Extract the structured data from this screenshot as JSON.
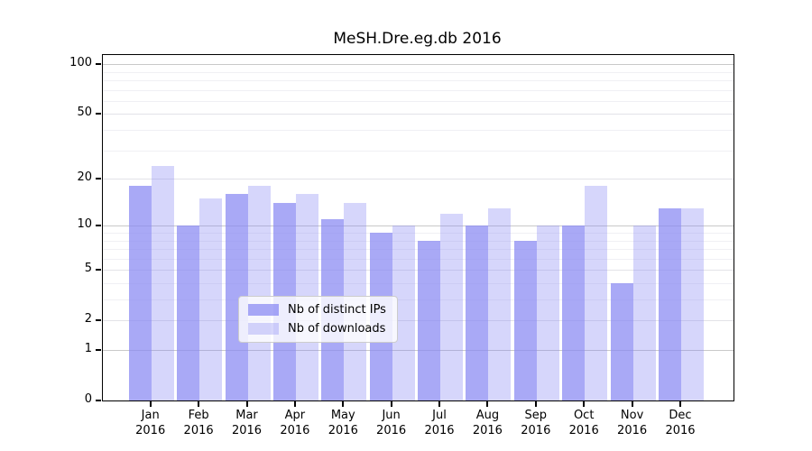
{
  "chart_data": {
    "type": "bar",
    "title": "MeSH.Dre.eg.db 2016",
    "categories": [
      "Jan",
      "Feb",
      "Mar",
      "Apr",
      "May",
      "Jun",
      "Jul",
      "Aug",
      "Sep",
      "Oct",
      "Nov",
      "Dec"
    ],
    "year_label": "2016",
    "series": [
      {
        "name": "Nb of distinct IPs",
        "color": "rgba(136,136,242,0.72)",
        "values": [
          18,
          10,
          16,
          14,
          11,
          9,
          8,
          10,
          8,
          10,
          4,
          13
        ]
      },
      {
        "name": "Nb of downloads",
        "color": "rgba(136,136,242,0.34)",
        "values": [
          24,
          15,
          18,
          16,
          14,
          10,
          12,
          13,
          10,
          18,
          10,
          13
        ]
      }
    ],
    "xlabel": "",
    "ylabel": "",
    "y_axis": {
      "scale": "log10(1+x)",
      "ticks": [
        0,
        1,
        2,
        5,
        10,
        20,
        50,
        100
      ],
      "ylim": [
        0,
        110
      ]
    },
    "grid": "on",
    "legend_position": "lower center",
    "colors": {
      "axis": "#000000",
      "grid_major": "#c9c9c9",
      "grid_minor": "#f0f0f4",
      "background": "#ffffff"
    }
  }
}
